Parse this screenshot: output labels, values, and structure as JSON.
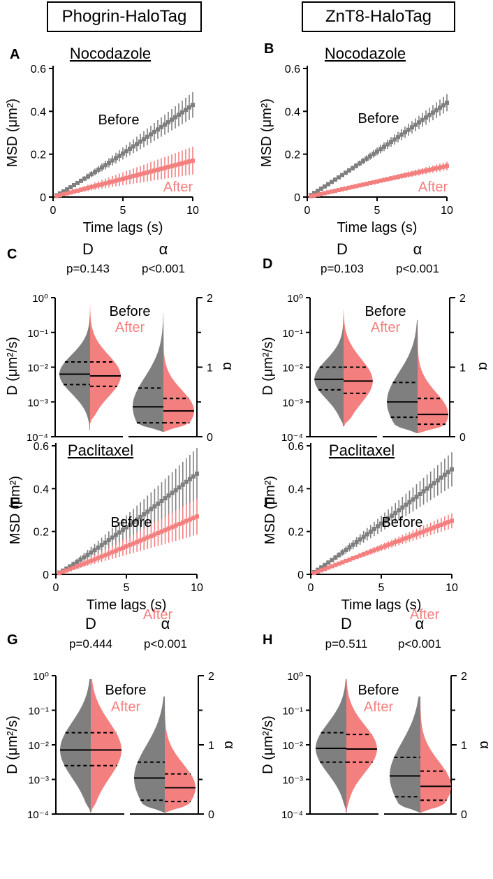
{
  "headers": [
    "Phogrin-HaloTag",
    "ZnT8-HaloTag"
  ],
  "colors": {
    "before": "#7f7f7f",
    "after": "#f47f7f",
    "axis": "#000000"
  },
  "chart_data": [
    {
      "panel": "A",
      "type": "line",
      "title": "Nocodazole",
      "xlabel": "Time lags (s)",
      "ylabel": "MSD (μm²)",
      "xlim": [
        0,
        10
      ],
      "ylim": [
        0,
        0.6
      ],
      "xticks": [
        "0",
        "5",
        "10"
      ],
      "yticks": [
        "0",
        "0.2",
        "0.4",
        "0.6"
      ],
      "series": [
        {
          "name": "Before",
          "values_at_10s": 0.43,
          "error_at_10s": 0.06,
          "shape": 1.08
        },
        {
          "name": "After",
          "values_at_10s": 0.17,
          "error_at_10s": 0.065,
          "shape": 1.0
        }
      ]
    },
    {
      "panel": "B",
      "type": "line",
      "title": "Nocodazole",
      "xlabel": "Time lags (s)",
      "ylabel": "MSD (μm²)",
      "xlim": [
        0,
        10
      ],
      "ylim": [
        0,
        0.6
      ],
      "xticks": [
        "0",
        "5",
        "10"
      ],
      "yticks": [
        "0",
        "0.2",
        "0.4",
        "0.6"
      ],
      "series": [
        {
          "name": "Before",
          "values_at_10s": 0.44,
          "error_at_10s": 0.04,
          "shape": 1.05
        },
        {
          "name": "After",
          "values_at_10s": 0.145,
          "error_at_10s": 0.02,
          "shape": 1.0
        }
      ]
    },
    {
      "panel": "C",
      "type": "violin",
      "groups": [
        {
          "param": "D",
          "p": "p=0.143",
          "scale": "log",
          "before": {
            "min": -3.8,
            "max": -0.15,
            "median": -2.2,
            "q1": -2.5,
            "q3": -1.85,
            "width": 1.0
          },
          "after": {
            "min": -3.6,
            "max": -0.2,
            "median": -2.25,
            "q1": -2.55,
            "q3": -1.85,
            "width": 1.0
          }
        },
        {
          "param": "α",
          "p": "p<0.001",
          "scale": "linear",
          "before": {
            "min": 0.07,
            "max": 1.78,
            "median": 0.43,
            "q1": 0.2,
            "q3": 0.7,
            "width": 1.0
          },
          "after": {
            "min": 0.07,
            "max": 1.78,
            "median": 0.37,
            "q1": 0.2,
            "q3": 0.55,
            "width": 1.0
          }
        }
      ],
      "yleft": {
        "label": "D (μm²/s)",
        "ticks": [
          "10⁰",
          "10⁻¹",
          "10⁻²",
          "10⁻³",
          "10⁻⁴"
        ]
      },
      "yright": {
        "label": "α",
        "ticks": [
          "2",
          "1",
          "0"
        ]
      },
      "legend": [
        "Before",
        "After"
      ]
    },
    {
      "panel": "D",
      "type": "violin",
      "groups": [
        {
          "param": "D",
          "p": "p=0.103",
          "scale": "log",
          "before": {
            "min": -3.7,
            "max": -0.35,
            "median": -2.35,
            "q1": -2.65,
            "q3": -2.0,
            "width": 0.95
          },
          "after": {
            "min": -3.7,
            "max": -0.35,
            "median": -2.4,
            "q1": -2.75,
            "q3": -2.0,
            "width": 0.95
          }
        },
        {
          "param": "α",
          "p": "p<0.001",
          "scale": "linear",
          "before": {
            "min": 0.05,
            "max": 1.68,
            "median": 0.5,
            "q1": 0.28,
            "q3": 0.78,
            "width": 1.0
          },
          "after": {
            "min": 0.05,
            "max": 1.68,
            "median": 0.32,
            "q1": 0.18,
            "q3": 0.55,
            "width": 1.0
          }
        }
      ],
      "yleft": {
        "label": "D (μm²/s)",
        "ticks": [
          "10⁰",
          "10⁻¹",
          "10⁻²",
          "10⁻³",
          "10⁻⁴"
        ]
      },
      "yright": {
        "label": "α",
        "ticks": [
          "2",
          "1",
          "0"
        ]
      },
      "legend": [
        "Before",
        "After"
      ]
    },
    {
      "panel": "E",
      "type": "line",
      "title": "Paclitaxel",
      "xlabel": "Time lags (s)",
      "ylabel": "MSD (μm²)",
      "xlim": [
        0,
        10
      ],
      "ylim": [
        0,
        0.6
      ],
      "xticks": [
        "0",
        "5",
        "10"
      ],
      "yticks": [
        "0",
        "0.2",
        "0.4",
        "0.6"
      ],
      "series": [
        {
          "name": "Before",
          "values_at_10s": 0.47,
          "error_at_10s": 0.12,
          "shape": 1.1
        },
        {
          "name": "After",
          "values_at_10s": 0.27,
          "error_at_10s": 0.085,
          "shape": 1.05
        }
      ]
    },
    {
      "panel": "F",
      "type": "line",
      "title": "Paclitaxel",
      "xlabel": "Time lags (s)",
      "ylabel": "MSD (μm²)",
      "xlim": [
        0,
        10
      ],
      "ylim": [
        0,
        0.6
      ],
      "xticks": [
        "0",
        "5",
        "10"
      ],
      "yticks": [
        "0",
        "0.2",
        "0.4",
        "0.6"
      ],
      "series": [
        {
          "name": "Before",
          "values_at_10s": 0.49,
          "error_at_10s": 0.08,
          "shape": 1.05
        },
        {
          "name": "After",
          "values_at_10s": 0.25,
          "error_at_10s": 0.035,
          "shape": 1.0
        }
      ]
    },
    {
      "panel": "G",
      "type": "violin",
      "groups": [
        {
          "param": "D",
          "p": "p=0.444",
          "scale": "log",
          "before": {
            "min": -3.95,
            "max": -0.1,
            "median": -2.15,
            "q1": -2.6,
            "q3": -1.65,
            "width": 1.0
          },
          "after": {
            "min": -3.95,
            "max": -0.1,
            "median": -2.15,
            "q1": -2.6,
            "q3": -1.65,
            "width": 1.0
          }
        },
        {
          "param": "α",
          "p": "p<0.001",
          "scale": "linear",
          "before": {
            "min": 0.02,
            "max": 1.7,
            "median": 0.52,
            "q1": 0.2,
            "q3": 0.75,
            "width": 1.0
          },
          "after": {
            "min": 0.02,
            "max": 1.7,
            "median": 0.38,
            "q1": 0.18,
            "q3": 0.58,
            "width": 1.0
          }
        }
      ],
      "yleft": {
        "label": "D (μm²/s)",
        "ticks": [
          "10⁰",
          "10⁻¹",
          "10⁻²",
          "10⁻³",
          "10⁻⁴"
        ]
      },
      "yright": {
        "label": "α",
        "ticks": [
          "2",
          "1",
          "0"
        ]
      },
      "legend": [
        "Before",
        "After"
      ]
    },
    {
      "panel": "H",
      "type": "violin",
      "groups": [
        {
          "param": "D",
          "p": "p=0.511",
          "scale": "log",
          "before": {
            "min": -3.95,
            "max": -0.1,
            "median": -2.1,
            "q1": -2.5,
            "q3": -1.65,
            "width": 1.0
          },
          "after": {
            "min": -3.95,
            "max": -0.1,
            "median": -2.12,
            "q1": -2.5,
            "q3": -1.7,
            "width": 1.0
          }
        },
        {
          "param": "α",
          "p": "p<0.001",
          "scale": "linear",
          "before": {
            "min": 0.02,
            "max": 1.7,
            "median": 0.55,
            "q1": 0.25,
            "q3": 0.82,
            "width": 1.0
          },
          "after": {
            "min": 0.02,
            "max": 1.7,
            "median": 0.4,
            "q1": 0.2,
            "q3": 0.62,
            "width": 1.0
          }
        }
      ],
      "yleft": {
        "label": "D (μm²/s)",
        "ticks": [
          "10⁰",
          "10⁻¹",
          "10⁻²",
          "10⁻³",
          "10⁻⁴"
        ]
      },
      "yright": {
        "label": "α",
        "ticks": [
          "2",
          "1",
          "0"
        ]
      },
      "legend": [
        "Before",
        "After"
      ]
    }
  ]
}
